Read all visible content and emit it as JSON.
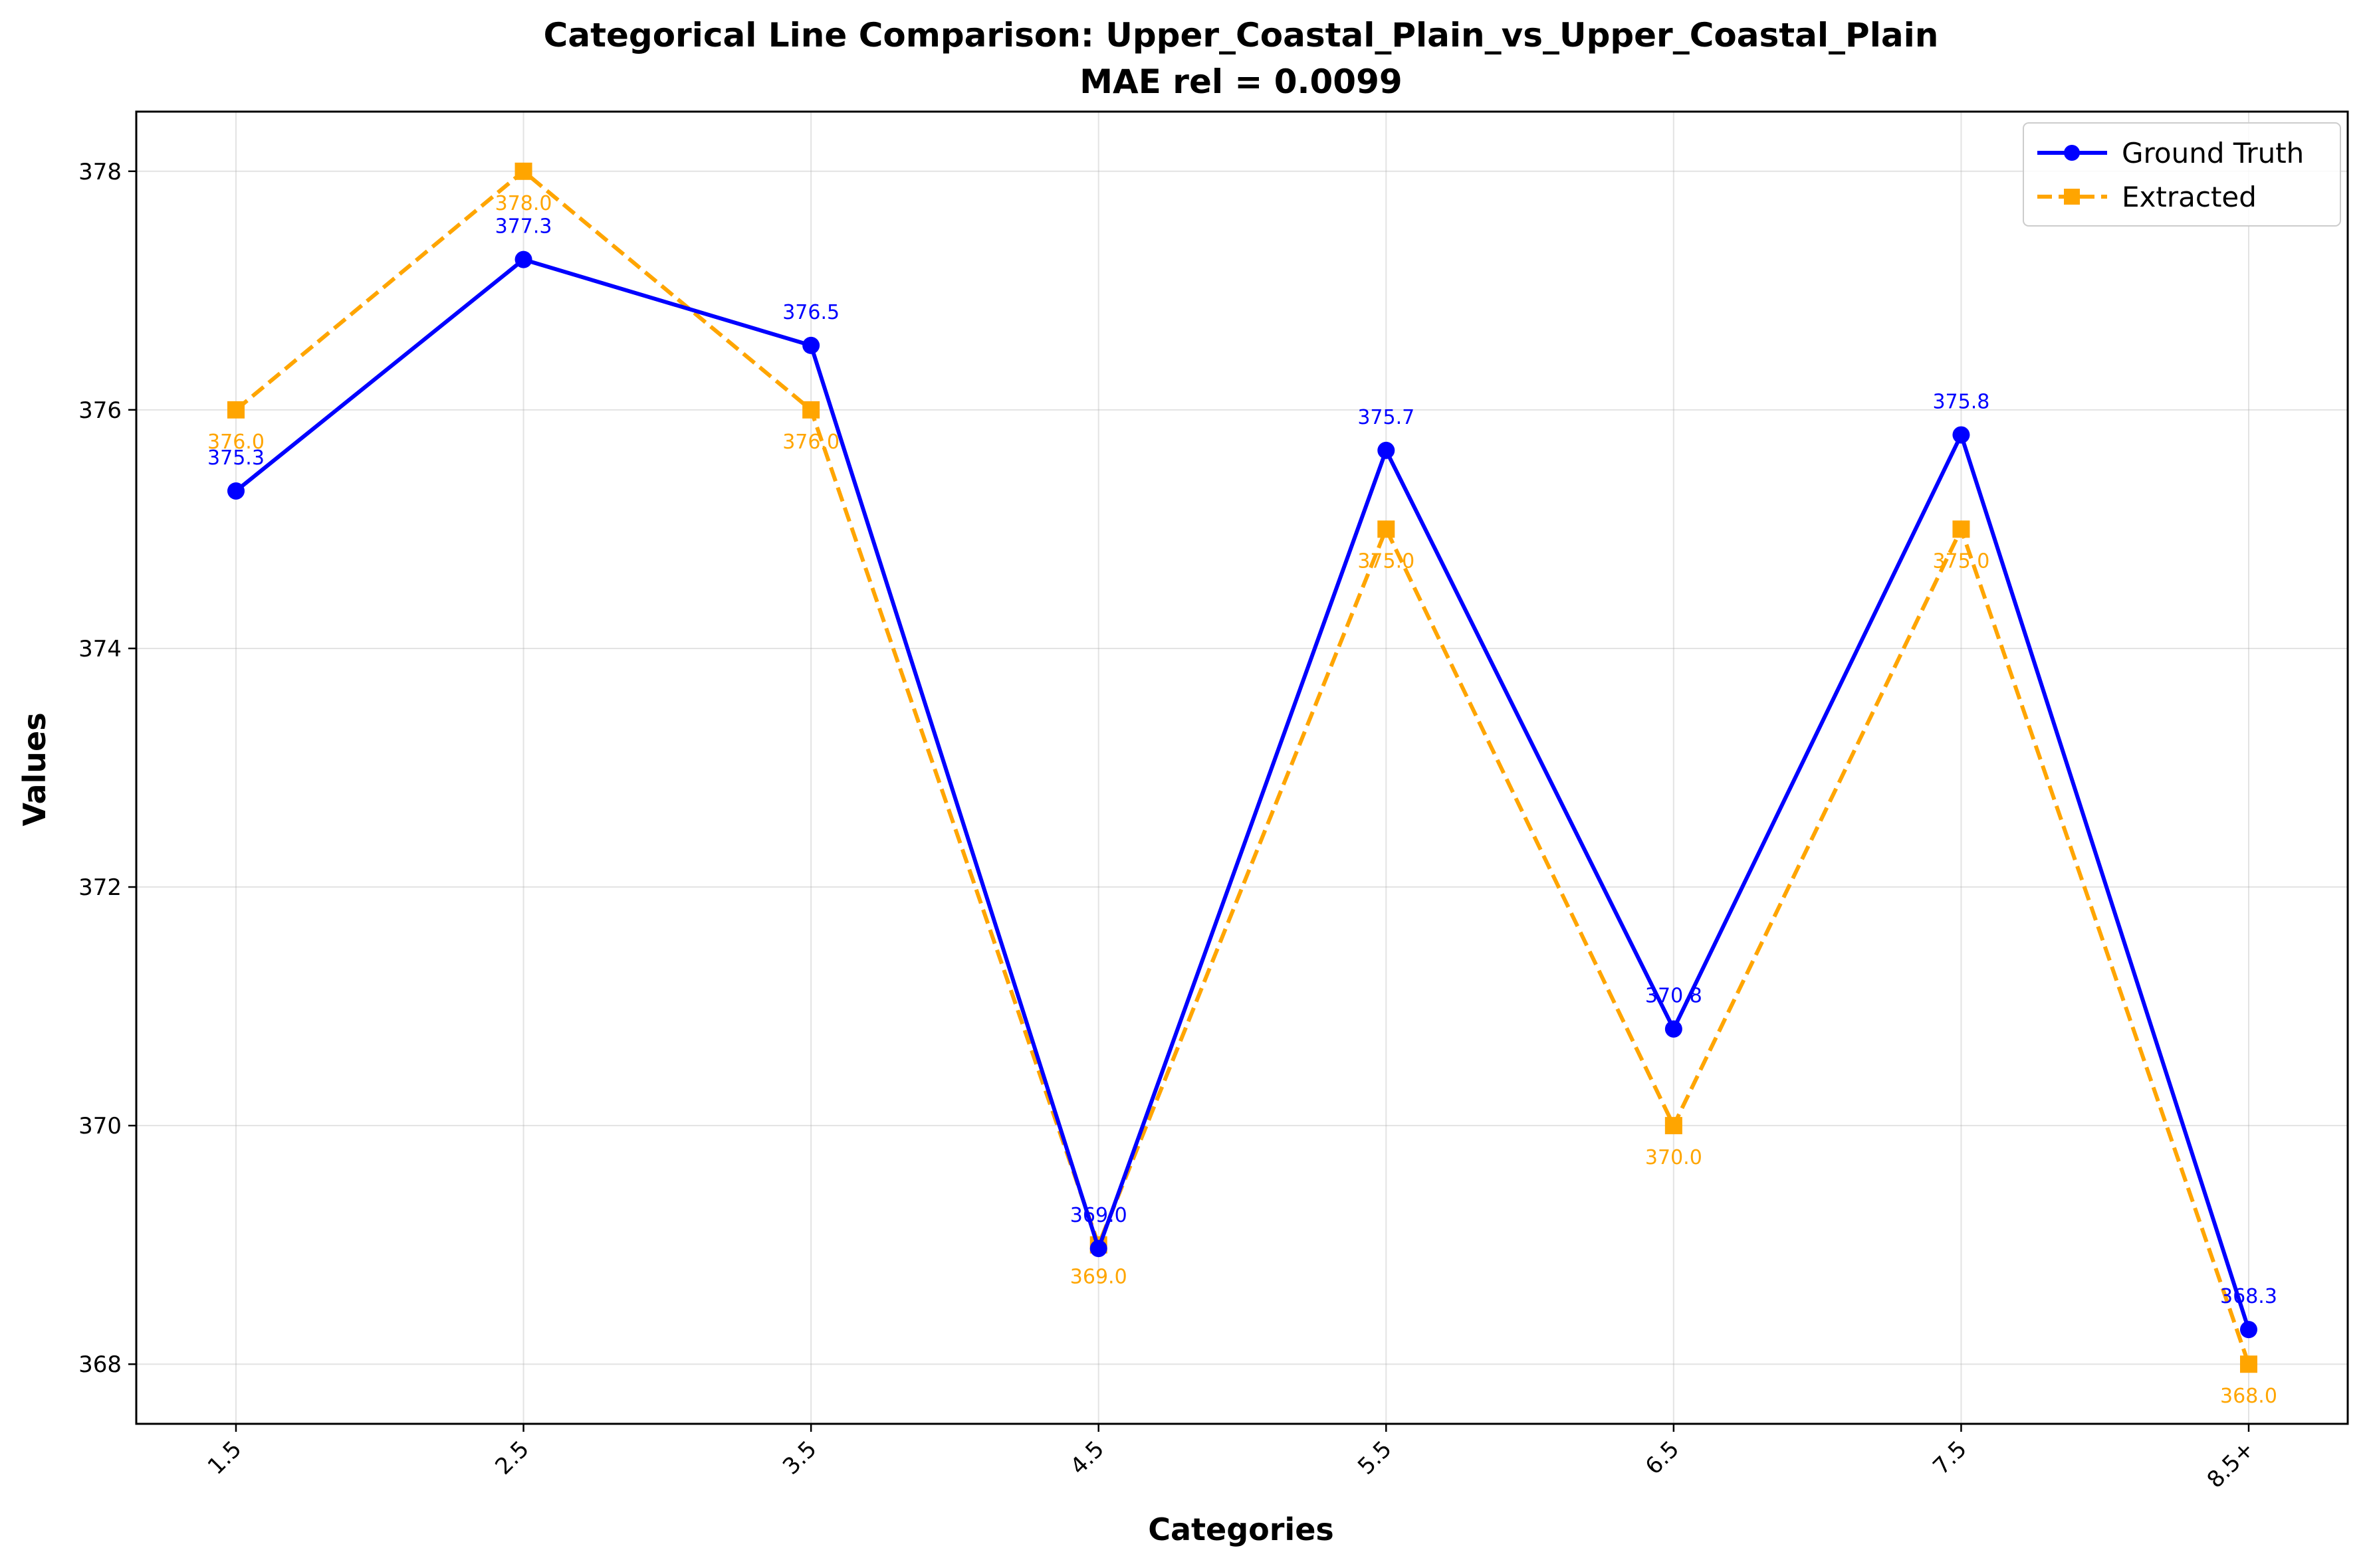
{
  "chart_data": {
    "type": "line",
    "title": "Categorical Line Comparison: Upper_Coastal_Plain_vs_Upper_Coastal_Plain",
    "subtitle": "MAE rel = 0.0099",
    "xlabel": "Categories",
    "ylabel": "Values",
    "categories": [
      "1.5",
      "2.5",
      "3.5",
      "4.5",
      "5.5",
      "6.5",
      "7.5",
      "8.5+"
    ],
    "ylim": [
      367.5,
      378.5
    ],
    "yticks": [
      368,
      370,
      372,
      374,
      376,
      378
    ],
    "grid": true,
    "legend_position": "top-right",
    "series": [
      {
        "name": "Ground Truth",
        "color": "#0000ff",
        "marker": "circle",
        "linestyle": "solid",
        "values": [
          375.32,
          377.26,
          376.54,
          368.97,
          375.66,
          370.81,
          375.79,
          368.29
        ],
        "labels": [
          "375.3",
          "377.3",
          "376.5",
          "369.0",
          "375.7",
          "370.8",
          "375.8",
          "368.3"
        ]
      },
      {
        "name": "Extracted",
        "color": "#ffa500",
        "marker": "square",
        "linestyle": "dashed",
        "values": [
          376.0,
          378.0,
          376.0,
          369.0,
          375.0,
          370.0,
          375.0,
          368.0
        ],
        "labels": [
          "376.0",
          "378.0",
          "376.0",
          "369.0",
          "375.0",
          "370.0",
          "375.0",
          "368.0"
        ]
      }
    ]
  }
}
